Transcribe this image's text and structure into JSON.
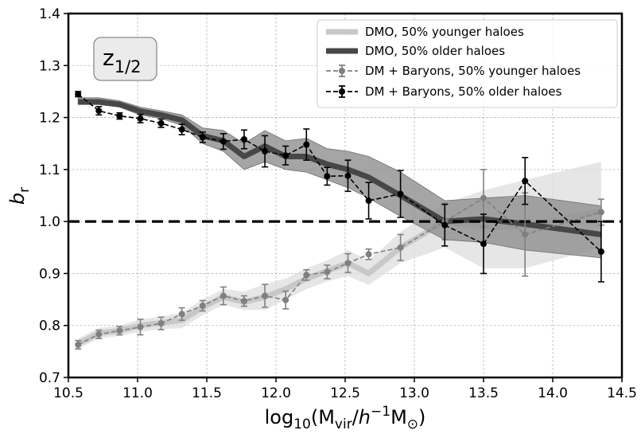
{
  "chart_data": {
    "type": "line",
    "title": "",
    "annotation": {
      "base": "z",
      "sub": "1/2"
    },
    "xlabel": {
      "pre": "log",
      "pre_sub": "10",
      "open": "(M",
      "m_sub": "vir",
      "slash": "/",
      "h": "h",
      "sup": "−1",
      "m2": "M",
      "sun_sub": "⊙",
      "close": ")"
    },
    "ylabel": {
      "base": "b",
      "sub": "r"
    },
    "xlim": [
      10.5,
      14.5
    ],
    "ylim": [
      0.7,
      1.4
    ],
    "xticks": [
      10.5,
      11.0,
      11.5,
      12.0,
      12.5,
      13.0,
      13.5,
      14.0,
      14.5
    ],
    "xtick_labels": [
      "10.5",
      "11.0",
      "11.5",
      "12.0",
      "12.5",
      "13.0",
      "13.5",
      "14.0",
      "14.5"
    ],
    "yticks": [
      0.7,
      0.8,
      0.9,
      1.0,
      1.1,
      1.2,
      1.3,
      1.4
    ],
    "ytick_labels": [
      "0.7",
      "0.8",
      "0.9",
      "1.0",
      "1.1",
      "1.2",
      "1.3",
      "1.4"
    ],
    "grid": true,
    "reference_line": 1.0,
    "legend_position": "top-right",
    "colors": {
      "dmo_young": "#c8c8c8",
      "dmo_young_band": "#dcdcdc",
      "dmo_old": "#474747",
      "dmo_old_band": "#8e8e8e",
      "bar_young": "#808080",
      "bar_old": "#000000"
    },
    "series": [
      {
        "name": "DMO, 50% younger haloes",
        "style": "band",
        "x": [
          10.57,
          10.72,
          10.87,
          11.02,
          11.17,
          11.32,
          11.47,
          11.62,
          11.77,
          11.92,
          12.07,
          12.22,
          12.37,
          12.52,
          12.67,
          12.9,
          13.22,
          13.5,
          13.8,
          14.35
        ],
        "y": [
          0.765,
          0.785,
          0.79,
          0.8,
          0.805,
          0.81,
          0.835,
          0.855,
          0.845,
          0.855,
          0.87,
          0.89,
          0.905,
          0.92,
          0.9,
          0.95,
          1.0,
          0.99,
          0.99,
          1.02
        ],
        "lower": [
          0.755,
          0.775,
          0.78,
          0.788,
          0.793,
          0.795,
          0.82,
          0.84,
          0.83,
          0.83,
          0.85,
          0.87,
          0.885,
          0.895,
          0.878,
          0.92,
          0.95,
          0.91,
          0.91,
          0.95
        ],
        "upper": [
          0.775,
          0.795,
          0.8,
          0.812,
          0.817,
          0.825,
          0.85,
          0.87,
          0.865,
          0.88,
          0.89,
          0.91,
          0.925,
          0.945,
          0.925,
          0.98,
          1.035,
          1.06,
          1.08,
          1.115
        ]
      },
      {
        "name": "DMO, 50% older haloes",
        "style": "band",
        "x": [
          10.57,
          10.72,
          10.87,
          11.02,
          11.17,
          11.32,
          11.47,
          11.62,
          11.77,
          11.92,
          12.07,
          12.22,
          12.37,
          12.52,
          12.67,
          12.9,
          13.22,
          13.5,
          13.8,
          14.35
        ],
        "y": [
          1.23,
          1.23,
          1.225,
          1.212,
          1.205,
          1.195,
          1.165,
          1.155,
          1.125,
          1.145,
          1.125,
          1.125,
          1.11,
          1.1,
          1.085,
          1.05,
          1.0,
          1.005,
          0.995,
          0.975
        ],
        "lower": [
          1.225,
          1.225,
          1.22,
          1.205,
          1.198,
          1.185,
          1.15,
          1.135,
          1.1,
          1.115,
          1.1,
          1.095,
          1.08,
          1.065,
          1.045,
          1.01,
          0.965,
          0.96,
          0.945,
          0.93
        ],
        "upper": [
          1.238,
          1.238,
          1.232,
          1.22,
          1.213,
          1.205,
          1.18,
          1.175,
          1.15,
          1.175,
          1.155,
          1.16,
          1.14,
          1.135,
          1.125,
          1.095,
          1.04,
          1.045,
          1.05,
          1.03
        ]
      },
      {
        "name": "DM + Baryons, 50% younger haloes",
        "style": "errorbar",
        "x": [
          10.57,
          10.72,
          10.87,
          11.02,
          11.17,
          11.32,
          11.47,
          11.62,
          11.77,
          11.92,
          12.07,
          12.22,
          12.37,
          12.52,
          12.67,
          12.9,
          13.22,
          13.5,
          13.8,
          14.35
        ],
        "y": [
          0.763,
          0.783,
          0.79,
          0.797,
          0.804,
          0.822,
          0.838,
          0.857,
          0.847,
          0.857,
          0.849,
          0.897,
          0.903,
          0.92,
          0.937,
          0.95,
          1.0,
          1.045,
          0.975,
          1.018
        ],
        "err": [
          0.008,
          0.008,
          0.008,
          0.015,
          0.012,
          0.012,
          0.01,
          0.017,
          0.01,
          0.022,
          0.017,
          0.01,
          0.013,
          0.018,
          0.01,
          0.025,
          0.035,
          0.055,
          0.08,
          0.025
        ]
      },
      {
        "name": "DM + Baryons, 50% older haloes",
        "style": "errorbar",
        "x": [
          10.57,
          10.72,
          10.87,
          11.02,
          11.17,
          11.32,
          11.47,
          11.62,
          11.77,
          11.92,
          12.07,
          12.22,
          12.37,
          12.52,
          12.67,
          12.9,
          13.22,
          13.5,
          13.8,
          14.35
        ],
        "y": [
          1.245,
          1.213,
          1.203,
          1.198,
          1.189,
          1.177,
          1.162,
          1.154,
          1.158,
          1.135,
          1.127,
          1.148,
          1.087,
          1.088,
          1.04,
          1.053,
          0.993,
          0.957,
          1.078,
          0.942
        ],
        "err": [
          0.005,
          0.008,
          0.006,
          0.008,
          0.008,
          0.01,
          0.01,
          0.015,
          0.018,
          0.03,
          0.018,
          0.03,
          0.017,
          0.03,
          0.035,
          0.045,
          0.04,
          0.057,
          0.045,
          0.058
        ]
      }
    ]
  }
}
